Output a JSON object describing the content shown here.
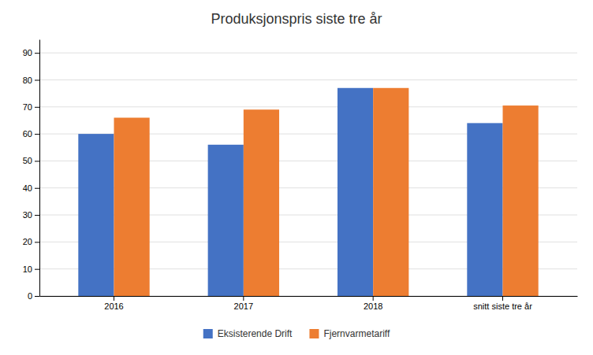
{
  "chart_data": {
    "type": "bar",
    "title": "Produksjonspris siste tre år",
    "categories": [
      "2016",
      "2017",
      "2018",
      "snitt siste tre år"
    ],
    "series": [
      {
        "name": "Eksisterende Drift",
        "color": "#4472C4",
        "values": [
          60,
          56,
          77,
          64
        ]
      },
      {
        "name": "Fjernvarmetariff",
        "color": "#ED7D31",
        "values": [
          66,
          69,
          77,
          70.5
        ]
      }
    ],
    "ylim": [
      0,
      95
    ],
    "yticks": [
      0,
      10,
      20,
      30,
      40,
      50,
      60,
      70,
      80,
      90
    ],
    "grid": true,
    "legend": "bottom"
  }
}
